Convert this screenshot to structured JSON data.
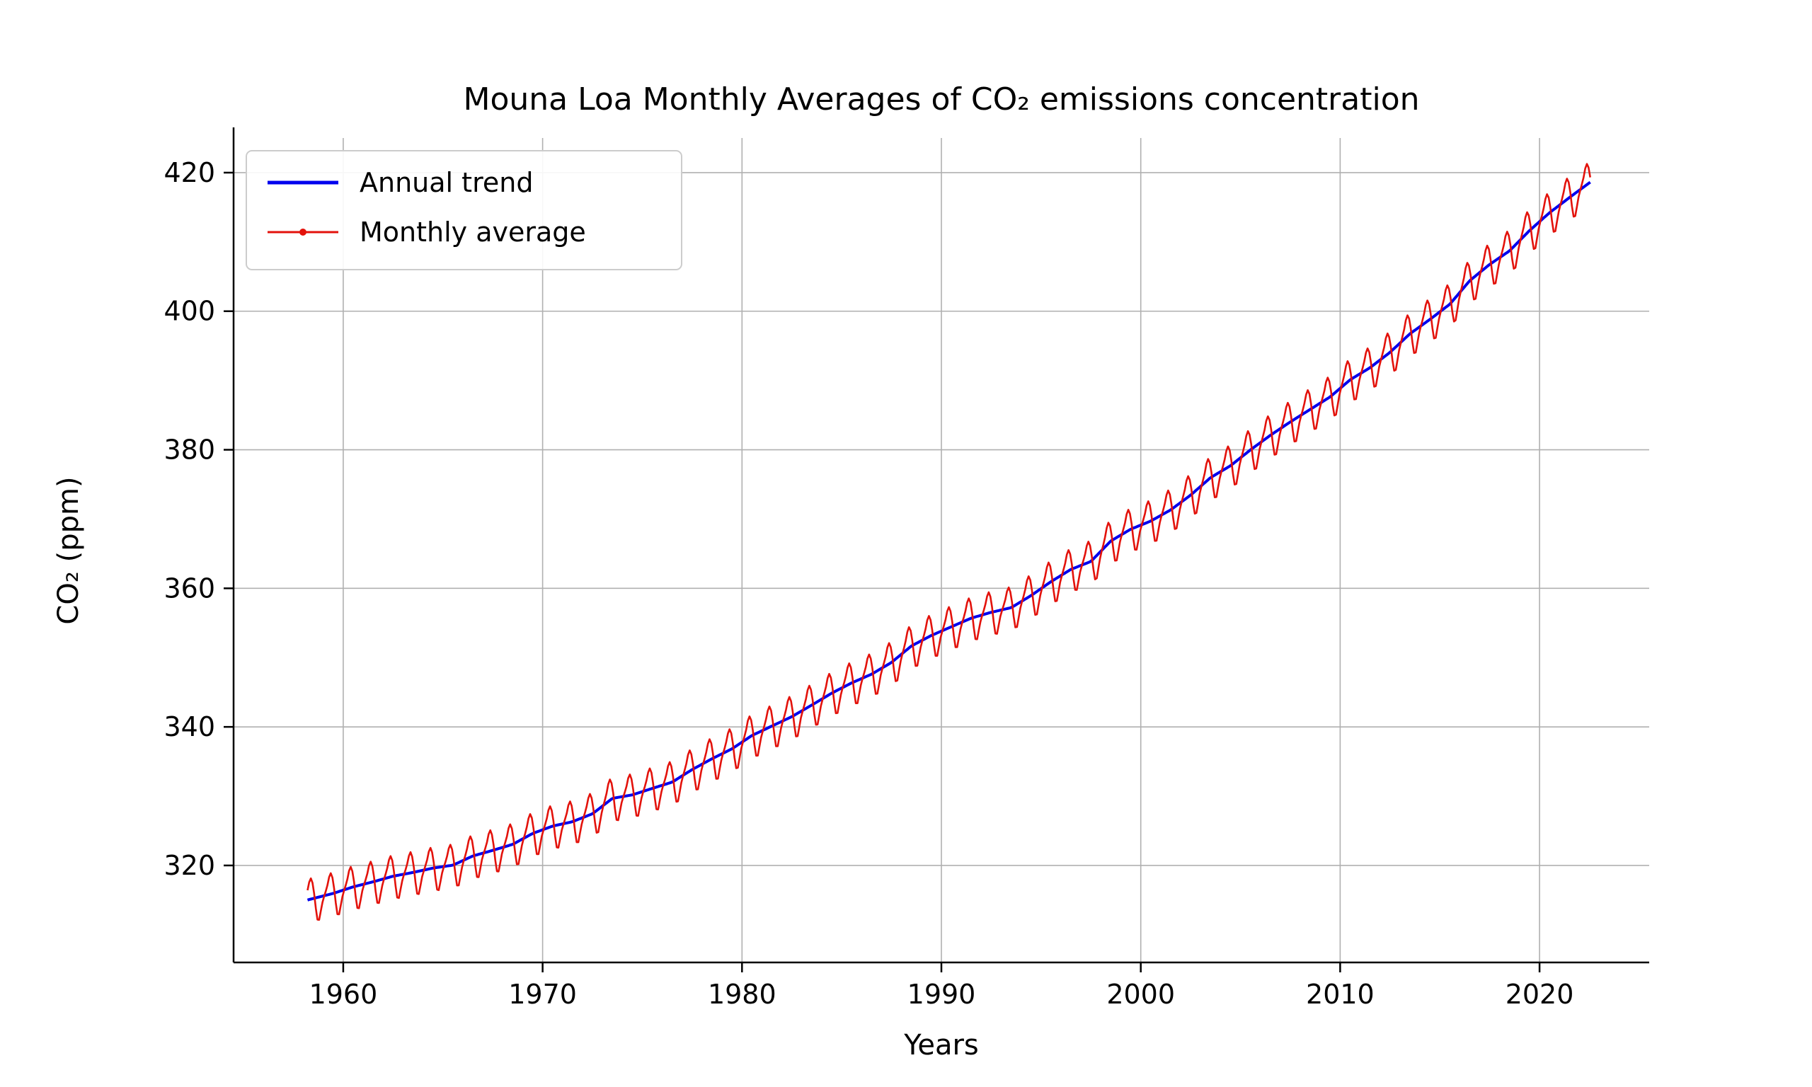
{
  "chart_data": {
    "type": "line",
    "title": "Mouna Loa Monthly Averages of CO₂ emissions concentration",
    "xlabel": "Years",
    "ylabel": "CO₂ (ppm)",
    "xlim": [
      1954.5,
      2025.5
    ],
    "ylim": [
      306,
      425
    ],
    "xticks": [
      1960,
      1970,
      1980,
      1990,
      2000,
      2010,
      2020
    ],
    "yticks": [
      320,
      340,
      360,
      380,
      400,
      420
    ],
    "grid": true,
    "grid_color": "#b0b0b0",
    "legend": {
      "position": "upper left",
      "entries": [
        {
          "label": "Annual trend",
          "color": "#0000ee",
          "linewidth": 5
        },
        {
          "label": "Monthly average",
          "color": "#e3120b",
          "linewidth": 3,
          "marker": "dot"
        }
      ]
    },
    "series": [
      {
        "name": "Annual trend",
        "color": "#0000ee",
        "years": [
          1958,
          1959,
          1960,
          1961,
          1962,
          1963,
          1964,
          1965,
          1966,
          1967,
          1968,
          1969,
          1970,
          1971,
          1972,
          1973,
          1974,
          1975,
          1976,
          1977,
          1978,
          1979,
          1980,
          1981,
          1982,
          1983,
          1984,
          1985,
          1986,
          1987,
          1988,
          1989,
          1990,
          1991,
          1992,
          1993,
          1994,
          1995,
          1996,
          1997,
          1998,
          1999,
          2000,
          2001,
          2002,
          2003,
          2004,
          2005,
          2006,
          2007,
          2008,
          2009,
          2010,
          2011,
          2012,
          2013,
          2014,
          2015,
          2016,
          2017,
          2018,
          2019,
          2020,
          2021,
          2022
        ],
        "values": [
          315.23,
          315.97,
          316.91,
          317.64,
          318.45,
          318.99,
          319.62,
          320.04,
          321.37,
          322.18,
          323.05,
          324.62,
          325.68,
          326.32,
          327.46,
          329.68,
          330.19,
          331.12,
          332.03,
          333.84,
          335.41,
          336.84,
          338.76,
          340.12,
          341.48,
          343.15,
          344.87,
          346.35,
          347.61,
          349.31,
          351.69,
          353.2,
          354.45,
          355.7,
          356.54,
          357.21,
          358.96,
          360.97,
          362.74,
          363.88,
          366.84,
          368.54,
          369.71,
          371.32,
          373.45,
          375.98,
          377.7,
          379.98,
          382.09,
          384.02,
          385.83,
          387.64,
          390.1,
          391.85,
          394.06,
          396.74,
          398.81,
          401.01,
          404.41,
          406.76,
          408.72,
          411.65,
          414.21,
          416.41,
          418.53
        ]
      },
      {
        "name": "Monthly average",
        "color": "#e3120b",
        "derivation": "annual trend linearly interpolated plus mean seasonal cycle",
        "seasonal_anomaly_by_month": [
          -0.1,
          0.6,
          1.4,
          2.5,
          3.0,
          2.3,
          0.7,
          -1.5,
          -3.2,
          -3.3,
          -2.1,
          -0.9
        ],
        "start": "1958-03",
        "end": "2022-07"
      }
    ]
  }
}
